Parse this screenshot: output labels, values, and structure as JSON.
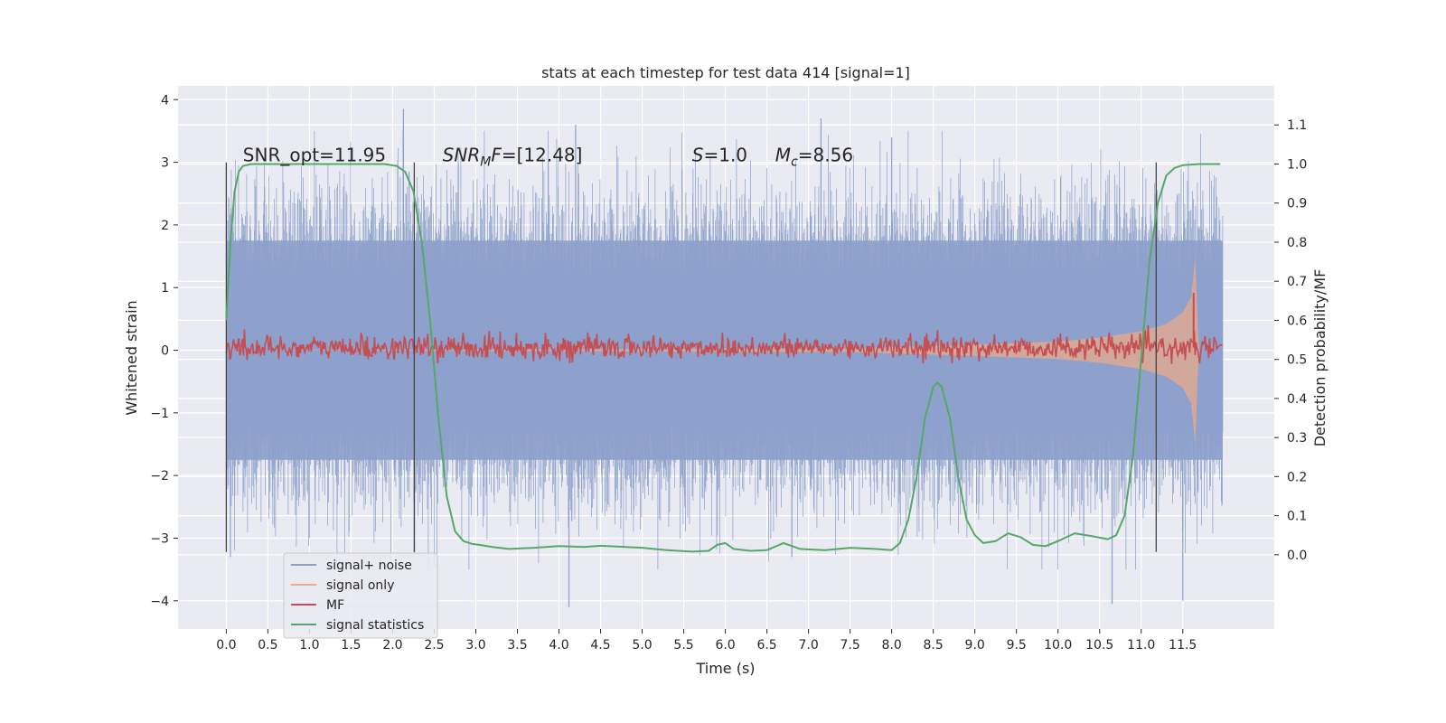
{
  "chart_data": {
    "type": "line",
    "title": "stats at each timestep for test data 414 [signal=1]",
    "xlabel": "Time (s)",
    "ylabel": "Whitened strain",
    "y2label": "Detection probability/MF",
    "xlim": [
      -0.58,
      12.6
    ],
    "ylim": [
      -4.45,
      4.22
    ],
    "y2lim": [
      -0.19,
      1.2
    ],
    "xticks": [
      0.0,
      0.5,
      1.0,
      1.5,
      2.0,
      2.5,
      3.0,
      3.5,
      4.0,
      4.5,
      5.0,
      5.5,
      6.0,
      6.5,
      7.0,
      7.5,
      8.0,
      8.5,
      9.0,
      9.5,
      10.0,
      10.5,
      11.0,
      11.5
    ],
    "xtick_labels": [
      "0.0",
      "0.5",
      "1.0",
      "1.5",
      "2.0",
      "2.5",
      "3.0",
      "3.5",
      "4.0",
      "4.5",
      "5.0",
      "5.5",
      "6.0",
      "6.5",
      "7.0",
      "7.5",
      "8.0",
      "8.5",
      "9.0",
      "9.5",
      "10.0",
      "10.5",
      "11.0",
      "11.5"
    ],
    "yticks": [
      -4,
      -3,
      -2,
      -1,
      0,
      1,
      2,
      3,
      4
    ],
    "ytick_labels": [
      "−4",
      "−3",
      "−2",
      "−1",
      "0",
      "1",
      "2",
      "3",
      "4"
    ],
    "y2ticks": [
      0.0,
      0.1,
      0.2,
      0.3,
      0.4,
      0.5,
      0.6,
      0.7,
      0.8,
      0.9,
      1.0,
      1.1
    ],
    "y2tick_labels": [
      "0.0",
      "0.1",
      "0.2",
      "0.3",
      "0.4",
      "0.5",
      "0.6",
      "0.7",
      "0.8",
      "0.9",
      "1.0",
      "1.1"
    ],
    "grid": true,
    "legend_position": "lower-left",
    "annotations": [
      {
        "key": "snr_opt",
        "text": "SNR_opt=11.95",
        "x": 0.2,
        "y": 3.0
      },
      {
        "key": "snr_mf",
        "text": "SNR_MF=[12.48]",
        "x": 2.6,
        "y": 3.0
      },
      {
        "key": "s",
        "text": "S=1.0",
        "x": 5.6,
        "y": 3.0
      },
      {
        "key": "mc",
        "text": "Mc=8.56",
        "x": 6.6,
        "y": 3.0
      }
    ],
    "vertical_lines": [
      {
        "x": 0.0,
        "y": [
          -3.22,
          3.0
        ]
      },
      {
        "x": 2.26,
        "y": [
          -3.22,
          3.0
        ]
      },
      {
        "x": 11.18,
        "y": [
          -3.22,
          3.0
        ]
      }
    ],
    "series": [
      {
        "name": "signal+ noise",
        "color": "#8da0cb",
        "axis": "left",
        "x_range": [
          0.0,
          11.98
        ],
        "envelope": {
          "typical_amplitude": 1.0,
          "peak_max": 3.85,
          "peak_min": -4.1
        }
      },
      {
        "name": "signal only",
        "color": "#e8a98c",
        "axis": "left",
        "x": [
          0.0,
          7.5,
          8.0,
          9.0,
          10.0,
          10.5,
          11.0,
          11.3,
          11.5,
          11.6,
          11.65,
          11.68,
          11.7
        ],
        "envelope_amplitude": [
          0.0,
          0.03,
          0.05,
          0.09,
          0.14,
          0.2,
          0.3,
          0.42,
          0.6,
          0.85,
          1.5,
          0.4,
          0.0
        ]
      },
      {
        "name": "MF",
        "color": "#c44e52",
        "axis": "right",
        "x_range": [
          0.0,
          11.98
        ],
        "baseline": 0.53,
        "noise_amplitude": 0.015,
        "peak": {
          "x": 11.63,
          "y": 0.67
        }
      },
      {
        "name": "signal statistics",
        "color": "#55a868",
        "axis": "right",
        "x": [
          0.0,
          0.05,
          0.1,
          0.15,
          0.2,
          0.3,
          0.5,
          1.0,
          1.5,
          1.9,
          2.05,
          2.15,
          2.25,
          2.35,
          2.45,
          2.55,
          2.65,
          2.75,
          2.85,
          2.95,
          3.05,
          3.2,
          3.4,
          3.7,
          4.0,
          4.3,
          4.5,
          5.0,
          5.3,
          5.6,
          5.8,
          5.9,
          6.0,
          6.1,
          6.3,
          6.5,
          6.7,
          6.9,
          7.2,
          7.5,
          7.8,
          8.0,
          8.1,
          8.2,
          8.3,
          8.4,
          8.5,
          8.55,
          8.6,
          8.7,
          8.8,
          8.9,
          9.0,
          9.1,
          9.25,
          9.4,
          9.55,
          9.7,
          9.85,
          10.0,
          10.2,
          10.4,
          10.6,
          10.7,
          10.8,
          10.9,
          11.0,
          11.1,
          11.2,
          11.3,
          11.4,
          11.5,
          11.7,
          11.95
        ],
        "y": [
          0.6,
          0.8,
          0.93,
          0.98,
          0.995,
          1.0,
          1.0,
          1.0,
          1.0,
          1.0,
          0.995,
          0.98,
          0.93,
          0.8,
          0.6,
          0.35,
          0.15,
          0.06,
          0.035,
          0.028,
          0.025,
          0.02,
          0.015,
          0.018,
          0.022,
          0.02,
          0.023,
          0.018,
          0.012,
          0.008,
          0.01,
          0.025,
          0.03,
          0.015,
          0.01,
          0.012,
          0.03,
          0.015,
          0.012,
          0.018,
          0.015,
          0.012,
          0.03,
          0.09,
          0.2,
          0.35,
          0.43,
          0.44,
          0.43,
          0.35,
          0.2,
          0.09,
          0.05,
          0.03,
          0.035,
          0.055,
          0.045,
          0.025,
          0.022,
          0.035,
          0.055,
          0.048,
          0.04,
          0.05,
          0.1,
          0.25,
          0.5,
          0.75,
          0.9,
          0.97,
          0.99,
          0.997,
          1.0,
          1.0
        ]
      }
    ]
  }
}
